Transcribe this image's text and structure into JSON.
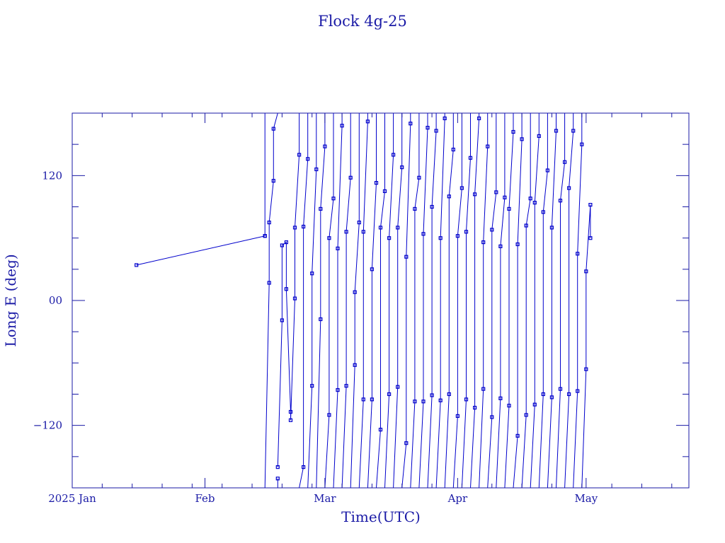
{
  "chart_data": {
    "type": "line",
    "title": "Flock 4g-25",
    "xlabel": "Time(UTC)",
    "ylabel": "Long E (deg)",
    "xlim": [
      "2025-01-01",
      "2025-05-25"
    ],
    "ylim": [
      -180,
      180
    ],
    "x_tick_labels": [
      {
        "date": "2025-01-01",
        "label": "2025 Jan"
      },
      {
        "date": "2025-02-01",
        "label": "Feb"
      },
      {
        "date": "2025-03-01",
        "label": "Mar"
      },
      {
        "date": "2025-04-01",
        "label": "Apr"
      },
      {
        "date": "2025-05-01",
        "label": "May"
      }
    ],
    "y_tick_labels": [
      {
        "value": 120,
        "label": "120"
      },
      {
        "value": 0,
        "label": "00"
      },
      {
        "value": -120,
        "label": "−120"
      }
    ],
    "grid": false,
    "legend": "none",
    "color": "#0000cc",
    "series": [
      {
        "wrap_segments": [
          [
            [
              "2025-01-16",
              34
            ],
            [
              "2025-02-15",
              62
            ]
          ],
          [
            [
              "2025-02-15",
              62
            ],
            [
              "2025-02-15",
              180
            ]
          ],
          [
            [
              "2025-02-15",
              -180
            ],
            [
              "2025-02-16",
              17
            ],
            [
              "2025-02-16",
              75
            ],
            [
              "2025-02-17",
              115
            ],
            [
              "2025-02-17",
              165
            ],
            [
              "2025-02-18",
              180
            ]
          ],
          [
            [
              "2025-02-18",
              -180
            ],
            [
              "2025-02-18",
              -171
            ]
          ],
          [
            [
              "2025-02-18",
              -160
            ],
            [
              "2025-02-19",
              -19
            ],
            [
              "2025-02-19",
              53
            ],
            [
              "2025-02-20",
              56
            ],
            [
              "2025-02-20",
              11
            ],
            [
              "2025-02-21",
              -107
            ],
            [
              "2025-02-21",
              -115
            ],
            [
              "2025-02-22",
              2
            ],
            [
              "2025-02-22",
              70
            ],
            [
              "2025-02-23",
              140
            ],
            [
              "2025-02-23",
              180
            ]
          ],
          [
            [
              "2025-02-23",
              -180
            ],
            [
              "2025-02-24",
              -160
            ],
            [
              "2025-02-24",
              71
            ],
            [
              "2025-02-25",
              136
            ],
            [
              "2025-02-25",
              180
            ]
          ],
          [
            [
              "2025-02-25",
              -180
            ],
            [
              "2025-02-26",
              -82
            ],
            [
              "2025-02-26",
              26
            ],
            [
              "2025-02-27",
              126
            ],
            [
              "2025-02-27",
              180
            ]
          ],
          [
            [
              "2025-02-27",
              -180
            ],
            [
              "2025-02-28",
              -18
            ],
            [
              "2025-02-28",
              88
            ],
            [
              "2025-03-01",
              148
            ],
            [
              "2025-03-01",
              180
            ]
          ],
          [
            [
              "2025-03-01",
              -180
            ],
            [
              "2025-03-02",
              -110
            ],
            [
              "2025-03-02",
              60
            ],
            [
              "2025-03-03",
              98
            ],
            [
              "2025-03-03",
              180
            ]
          ],
          [
            [
              "2025-03-03",
              -180
            ],
            [
              "2025-03-04",
              -86
            ],
            [
              "2025-03-04",
              50
            ],
            [
              "2025-03-05",
              168
            ],
            [
              "2025-03-05",
              180
            ]
          ],
          [
            [
              "2025-03-05",
              -180
            ],
            [
              "2025-03-06",
              -82
            ],
            [
              "2025-03-06",
              66
            ],
            [
              "2025-03-07",
              118
            ],
            [
              "2025-03-07",
              180
            ]
          ],
          [
            [
              "2025-03-07",
              -180
            ],
            [
              "2025-03-08",
              -62
            ],
            [
              "2025-03-08",
              8
            ],
            [
              "2025-03-09",
              75
            ],
            [
              "2025-03-09",
              180
            ]
          ],
          [
            [
              "2025-03-09",
              -180
            ],
            [
              "2025-03-10",
              -95
            ],
            [
              "2025-03-10",
              66
            ],
            [
              "2025-03-11",
              172
            ],
            [
              "2025-03-11",
              180
            ]
          ],
          [
            [
              "2025-03-11",
              -180
            ],
            [
              "2025-03-12",
              -95
            ],
            [
              "2025-03-12",
              30
            ],
            [
              "2025-03-13",
              113
            ],
            [
              "2025-03-13",
              180
            ]
          ],
          [
            [
              "2025-03-13",
              -180
            ],
            [
              "2025-03-14",
              -124
            ],
            [
              "2025-03-14",
              70
            ],
            [
              "2025-03-15",
              105
            ],
            [
              "2025-03-15",
              180
            ]
          ],
          [
            [
              "2025-03-15",
              -180
            ],
            [
              "2025-03-16",
              -90
            ],
            [
              "2025-03-16",
              60
            ],
            [
              "2025-03-17",
              140
            ],
            [
              "2025-03-17",
              180
            ]
          ],
          [
            [
              "2025-03-17",
              -180
            ],
            [
              "2025-03-18",
              -83
            ],
            [
              "2025-03-18",
              70
            ],
            [
              "2025-03-19",
              128
            ],
            [
              "2025-03-19",
              180
            ]
          ],
          [
            [
              "2025-03-19",
              -180
            ],
            [
              "2025-03-20",
              -137
            ],
            [
              "2025-03-20",
              42
            ],
            [
              "2025-03-21",
              170
            ],
            [
              "2025-03-21",
              180
            ]
          ],
          [
            [
              "2025-03-21",
              -180
            ],
            [
              "2025-03-22",
              -97
            ],
            [
              "2025-03-22",
              88
            ],
            [
              "2025-03-23",
              118
            ],
            [
              "2025-03-23",
              180
            ]
          ],
          [
            [
              "2025-03-23",
              -180
            ],
            [
              "2025-03-24",
              -97
            ],
            [
              "2025-03-24",
              64
            ],
            [
              "2025-03-25",
              166
            ],
            [
              "2025-03-25",
              180
            ]
          ],
          [
            [
              "2025-03-25",
              -180
            ],
            [
              "2025-03-26",
              -91
            ],
            [
              "2025-03-26",
              90
            ],
            [
              "2025-03-27",
              163
            ],
            [
              "2025-03-27",
              180
            ]
          ],
          [
            [
              "2025-03-27",
              -180
            ],
            [
              "2025-03-28",
              -96
            ],
            [
              "2025-03-28",
              60
            ],
            [
              "2025-03-29",
              175
            ],
            [
              "2025-03-29",
              180
            ]
          ],
          [
            [
              "2025-03-29",
              -180
            ],
            [
              "2025-03-30",
              -90
            ],
            [
              "2025-03-30",
              100
            ],
            [
              "2025-03-31",
              145
            ],
            [
              "2025-03-31",
              180
            ]
          ],
          [
            [
              "2025-03-31",
              -180
            ],
            [
              "2025-04-01",
              -111
            ],
            [
              "2025-04-01",
              62
            ],
            [
              "2025-04-02",
              108
            ],
            [
              "2025-04-02",
              180
            ]
          ],
          [
            [
              "2025-04-02",
              -180
            ],
            [
              "2025-04-03",
              -95
            ],
            [
              "2025-04-03",
              66
            ],
            [
              "2025-04-04",
              137
            ],
            [
              "2025-04-04",
              180
            ]
          ],
          [
            [
              "2025-04-04",
              -180
            ],
            [
              "2025-04-05",
              -103
            ],
            [
              "2025-04-05",
              102
            ],
            [
              "2025-04-06",
              175
            ],
            [
              "2025-04-06",
              180
            ]
          ],
          [
            [
              "2025-04-06",
              -180
            ],
            [
              "2025-04-07",
              -85
            ],
            [
              "2025-04-07",
              56
            ],
            [
              "2025-04-08",
              148
            ],
            [
              "2025-04-08",
              180
            ]
          ],
          [
            [
              "2025-04-08",
              -180
            ],
            [
              "2025-04-09",
              -112
            ],
            [
              "2025-04-09",
              68
            ],
            [
              "2025-04-10",
              104
            ],
            [
              "2025-04-10",
              180
            ]
          ],
          [
            [
              "2025-04-10",
              -180
            ],
            [
              "2025-04-11",
              -94
            ],
            [
              "2025-04-11",
              52
            ],
            [
              "2025-04-12",
              99
            ],
            [
              "2025-04-12",
              180
            ]
          ],
          [
            [
              "2025-04-12",
              -180
            ],
            [
              "2025-04-13",
              -101
            ],
            [
              "2025-04-13",
              88
            ],
            [
              "2025-04-14",
              162
            ],
            [
              "2025-04-14",
              180
            ]
          ],
          [
            [
              "2025-04-14",
              -180
            ],
            [
              "2025-04-15",
              -130
            ],
            [
              "2025-04-15",
              54
            ],
            [
              "2025-04-16",
              155
            ],
            [
              "2025-04-16",
              180
            ]
          ],
          [
            [
              "2025-04-16",
              -180
            ],
            [
              "2025-04-17",
              -110
            ],
            [
              "2025-04-17",
              72
            ],
            [
              "2025-04-18",
              98
            ],
            [
              "2025-04-18",
              180
            ]
          ],
          [
            [
              "2025-04-18",
              -180
            ],
            [
              "2025-04-19",
              -100
            ],
            [
              "2025-04-19",
              94
            ],
            [
              "2025-04-20",
              158
            ],
            [
              "2025-04-20",
              180
            ]
          ],
          [
            [
              "2025-04-20",
              -180
            ],
            [
              "2025-04-21",
              -90
            ],
            [
              "2025-04-21",
              85
            ],
            [
              "2025-04-22",
              125
            ],
            [
              "2025-04-22",
              180
            ]
          ],
          [
            [
              "2025-04-22",
              -180
            ],
            [
              "2025-04-23",
              -93
            ],
            [
              "2025-04-23",
              70
            ],
            [
              "2025-04-24",
              163
            ],
            [
              "2025-04-24",
              180
            ]
          ],
          [
            [
              "2025-04-24",
              -180
            ],
            [
              "2025-04-25",
              -85
            ],
            [
              "2025-04-25",
              96
            ],
            [
              "2025-04-26",
              133
            ],
            [
              "2025-04-26",
              180
            ]
          ],
          [
            [
              "2025-04-26",
              -180
            ],
            [
              "2025-04-27",
              -90
            ],
            [
              "2025-04-27",
              108
            ],
            [
              "2025-04-28",
              163
            ],
            [
              "2025-04-28",
              180
            ]
          ],
          [
            [
              "2025-04-28",
              -180
            ],
            [
              "2025-04-29",
              -87
            ],
            [
              "2025-04-29",
              45
            ],
            [
              "2025-04-30",
              150
            ],
            [
              "2025-04-30",
              180
            ]
          ],
          [
            [
              "2025-04-30",
              -180
            ],
            [
              "2025-05-01",
              -66
            ],
            [
              "2025-05-01",
              28
            ],
            [
              "2025-05-02",
              92
            ],
            [
              "2025-05-02",
              60
            ]
          ]
        ]
      }
    ]
  }
}
